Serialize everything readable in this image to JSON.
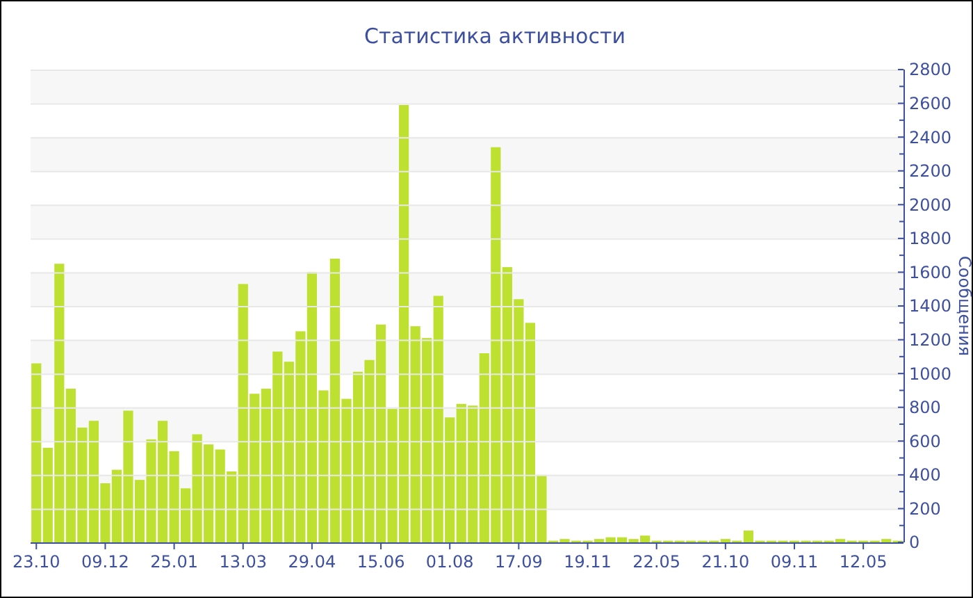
{
  "chart_data": {
    "type": "bar",
    "title": "Статистика активности",
    "ylabel": "Сообщения",
    "categories": [
      "23.10",
      null,
      null,
      null,
      null,
      null,
      "09.12",
      null,
      null,
      null,
      null,
      null,
      "25.01",
      null,
      null,
      null,
      null,
      null,
      "13.03",
      null,
      null,
      null,
      null,
      null,
      "29.04",
      null,
      null,
      null,
      null,
      null,
      "15.06",
      null,
      null,
      null,
      null,
      null,
      "01.08",
      null,
      null,
      null,
      null,
      null,
      "17.09",
      null,
      null,
      null,
      null,
      null,
      "19.11",
      null,
      null,
      null,
      null,
      null,
      "22.05",
      null,
      null,
      null,
      null,
      null,
      "21.10",
      null,
      null,
      null,
      null,
      null,
      "09.11",
      null,
      null,
      null,
      null,
      null,
      "12.05",
      null,
      null,
      null
    ],
    "values": [
      1060,
      560,
      1650,
      910,
      680,
      720,
      350,
      430,
      780,
      370,
      610,
      720,
      540,
      320,
      640,
      580,
      550,
      420,
      1530,
      880,
      910,
      1130,
      1070,
      1250,
      1600,
      900,
      1680,
      850,
      1010,
      1080,
      1290,
      790,
      2590,
      1280,
      1210,
      1460,
      740,
      820,
      810,
      1120,
      2340,
      1630,
      1440,
      1300,
      400,
      10,
      20,
      10,
      10,
      20,
      30,
      30,
      20,
      40,
      10,
      10,
      10,
      10,
      10,
      10,
      20,
      10,
      70,
      10,
      10,
      10,
      10,
      10,
      10,
      10,
      20,
      10,
      10,
      10,
      20,
      10
    ],
    "color": "#bde031",
    "ylim": [
      0,
      2800
    ],
    "yticks": [
      0,
      {
        "value": 100,
        "label": null
      },
      200,
      {
        "value": 300,
        "label": null
      },
      400,
      {
        "value": 500,
        "label": null
      },
      600,
      {
        "value": 700,
        "label": null
      },
      800,
      {
        "value": 900,
        "label": null
      },
      1000,
      {
        "value": 1100,
        "label": null
      },
      1200,
      {
        "value": 1300,
        "label": null
      },
      1400,
      {
        "value": 1500,
        "label": null
      },
      1600,
      {
        "value": 1700,
        "label": null
      },
      1800,
      {
        "value": 1900,
        "label": null
      },
      2000,
      {
        "value": 2100,
        "label": null
      },
      2200,
      {
        "value": 2300,
        "label": null
      },
      2400,
      {
        "value": 2500,
        "label": null
      },
      2600,
      {
        "value": 2700,
        "label": null
      },
      2800
    ],
    "grid": "y"
  }
}
